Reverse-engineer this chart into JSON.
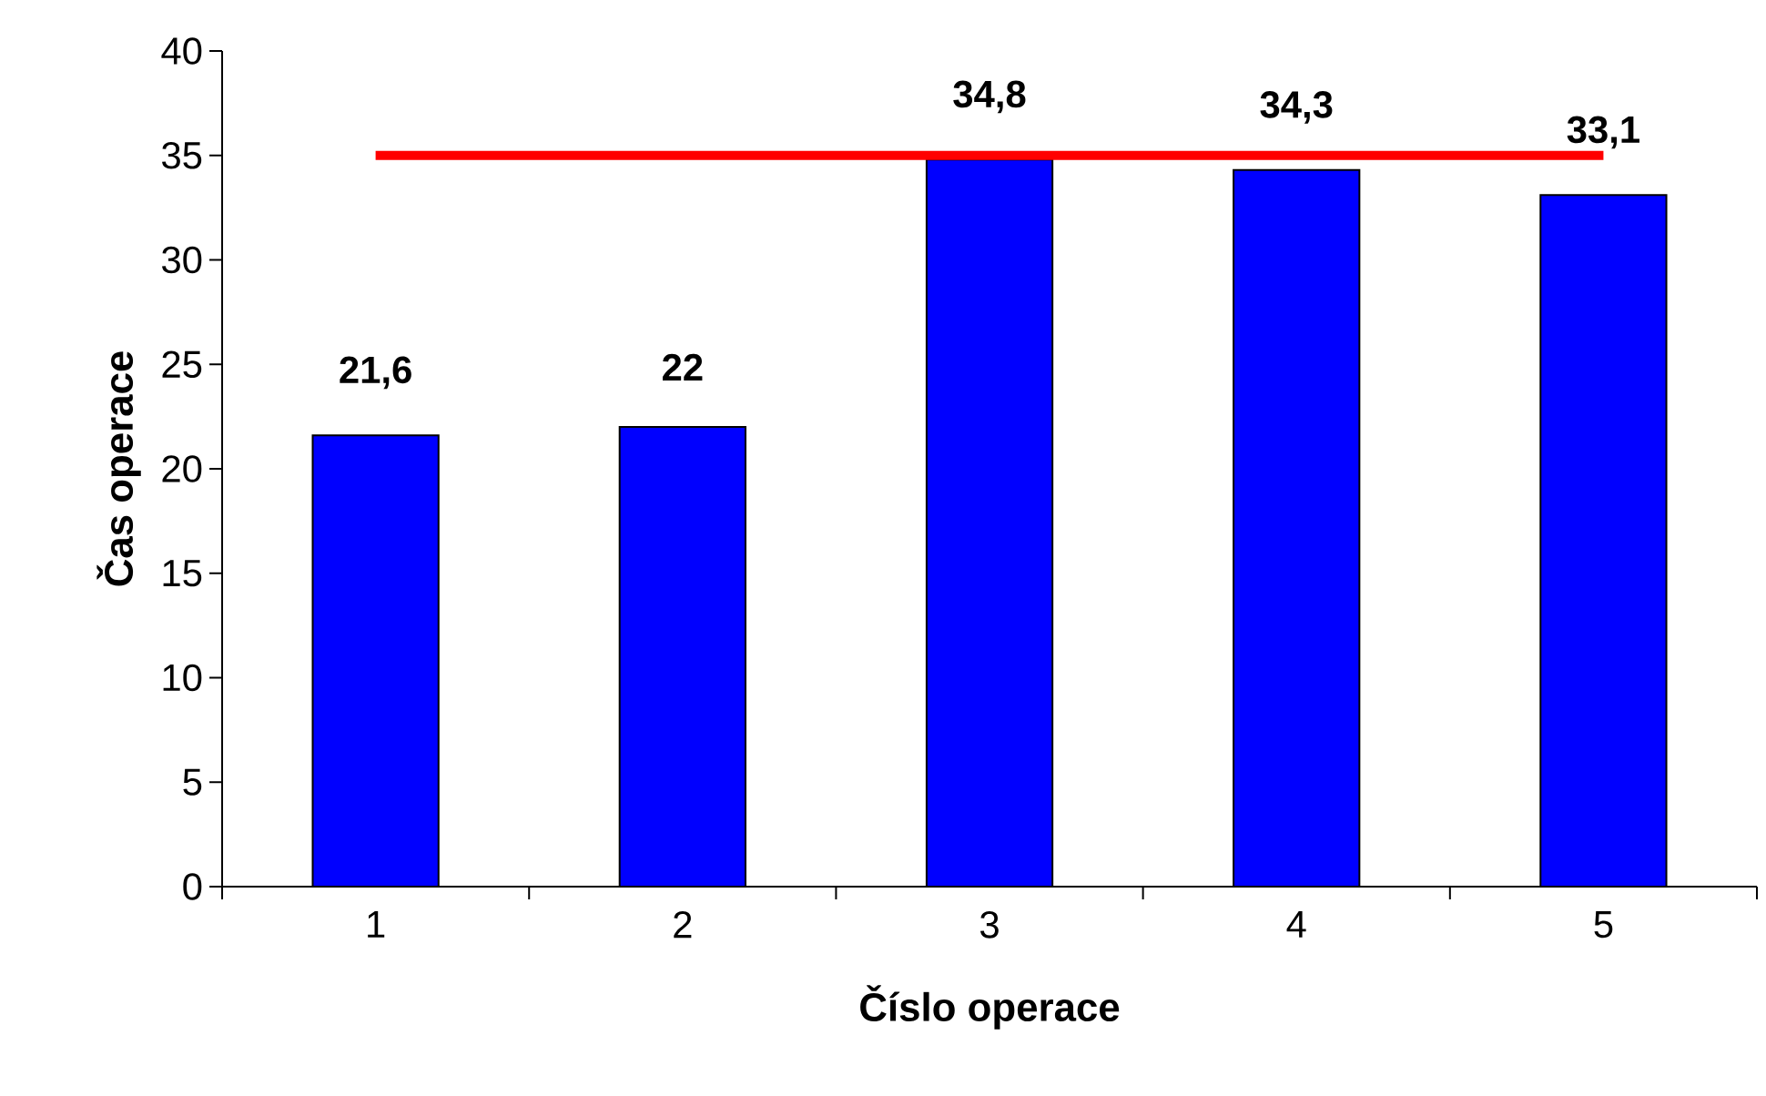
{
  "chart_data": {
    "type": "bar",
    "xlabel": "Číslo operace",
    "ylabel": "Čas operace",
    "categories": [
      "1",
      "2",
      "3",
      "4",
      "5"
    ],
    "series": [
      {
        "color": "#0000ff",
        "values": [
          21.6,
          22,
          34.8,
          34.3,
          33.1
        ],
        "value_labels": [
          "21,6",
          "22",
          "34,8",
          "34,3",
          "33,1"
        ]
      },
      {
        "type": "line",
        "color": "#ff0000",
        "values": [
          35,
          35,
          35,
          35,
          35
        ]
      }
    ],
    "ylim": [
      0,
      40
    ],
    "yticks": [
      0,
      5,
      10,
      15,
      20,
      25,
      30,
      35,
      40
    ],
    "grid": false,
    "legend": false,
    "marker": "none",
    "line_style": "solid"
  }
}
